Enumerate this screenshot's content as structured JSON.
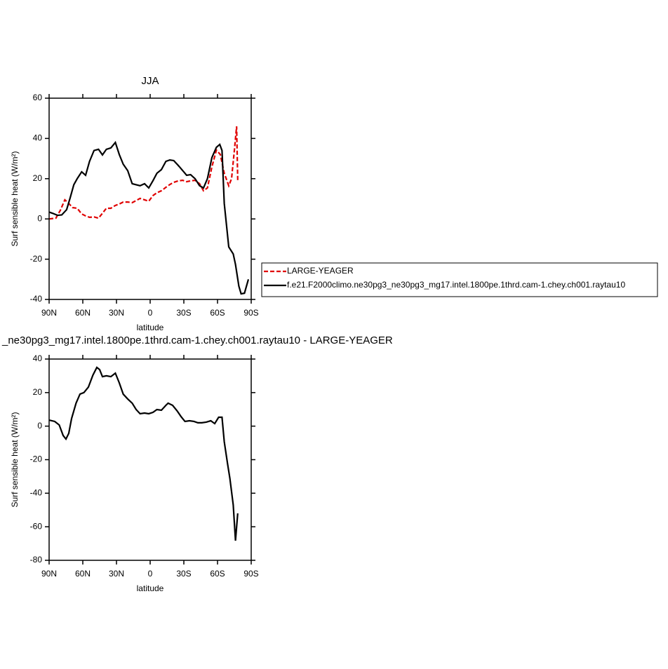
{
  "chart_data": [
    {
      "type": "line",
      "title": "JJA",
      "xlabel": "latitude",
      "ylabel": "Surf sensible heat (W/m²)",
      "xlim": [
        90,
        -90
      ],
      "ylim": [
        -40,
        60
      ],
      "xticks": [
        {
          "value": 90,
          "label": "90N"
        },
        {
          "value": 60,
          "label": "60N"
        },
        {
          "value": 30,
          "label": "30N"
        },
        0,
        {
          "value": -30,
          "label": "30S"
        },
        {
          "value": -60,
          "label": "60S"
        },
        {
          "value": -90,
          "label": "90S"
        }
      ],
      "yticks": [
        -40,
        -20,
        0,
        20,
        40,
        60
      ],
      "legend": "right",
      "series": [
        {
          "name": "LARGE-YEAGER",
          "color": "#e00000",
          "style": "dashed",
          "x": [
            90,
            84,
            80,
            76,
            72.5,
            69,
            65,
            61,
            57.5,
            54,
            50,
            46,
            42.5,
            39,
            35,
            31,
            27.5,
            24,
            20,
            16,
            12.5,
            9,
            5,
            1.25,
            -2.5,
            -6,
            -10,
            -14,
            -17.5,
            -21,
            -25,
            -29,
            -32.5,
            -36,
            -40,
            -44,
            -47.5,
            -51,
            -55,
            -59,
            -62.5,
            -66,
            -70,
            -72.5,
            -75,
            -77,
            -78
          ],
          "values": [
            0,
            0.4,
            4.3,
            9.5,
            7.7,
            5.6,
            5.3,
            2.5,
            1.5,
            0.8,
            1,
            0.4,
            2.8,
            5.3,
            5.3,
            6.7,
            7.4,
            8.4,
            8.4,
            8.1,
            9.1,
            10.2,
            9.5,
            8.8,
            11.6,
            13,
            14,
            15.7,
            17.1,
            18.2,
            18.9,
            19.2,
            18.5,
            18.9,
            19.2,
            17.5,
            14,
            15.4,
            25.9,
            34.2,
            32,
            22.7,
            16.5,
            20,
            34,
            46,
            19.2
          ]
        },
        {
          "name": "f.e21.F2000climo.ne30pg3_ne30pg3_mg17.intel.1800pe.1thrd.cam-1.chey.ch001.raytau10",
          "color": "#000000",
          "style": "solid",
          "x": [
            90,
            86.9,
            82.5,
            78.75,
            74.4,
            71.25,
            68,
            65,
            61,
            57.5,
            54,
            50,
            46,
            42.5,
            39,
            35,
            31,
            27.5,
            24,
            20,
            16,
            12.5,
            9,
            5,
            1.25,
            -2.5,
            -6,
            -10,
            -14,
            -17.5,
            -21,
            -25,
            -29,
            -32.5,
            -36,
            -40,
            -44,
            -47.5,
            -51,
            -55,
            -59,
            -62,
            -64,
            -66,
            -70,
            -74,
            -76,
            -79,
            -81,
            -84,
            -87.5
          ],
          "values": [
            3.4,
            2.8,
            1.8,
            2,
            4.6,
            10.5,
            17,
            20,
            23.4,
            21.7,
            28.6,
            34,
            34.6,
            31.8,
            34.6,
            35.3,
            38,
            32,
            27.2,
            24,
            17.5,
            17,
            16.5,
            17.5,
            15.4,
            19,
            22.7,
            24.5,
            28.6,
            29.3,
            29,
            26.6,
            24,
            21.7,
            22,
            20,
            16.5,
            15.4,
            20,
            30.5,
            35.6,
            37,
            34,
            7.7,
            -13.9,
            -17.4,
            -22.6,
            -33.4,
            -37.2,
            -36.9,
            -30
          ]
        }
      ]
    },
    {
      "type": "line",
      "title": "_ne30pg3_mg17.intel.1800pe.1thrd.cam-1.chey.ch001.raytau10 - LARGE-YEAGER",
      "xlabel": "latitude",
      "ylabel": "Surf sensible heat (W/m²)",
      "xlim": [
        90,
        -90
      ],
      "ylim": [
        -80,
        40
      ],
      "xticks": [
        {
          "value": 90,
          "label": "90N"
        },
        {
          "value": 60,
          "label": "60N"
        },
        {
          "value": 30,
          "label": "30N"
        },
        0,
        {
          "value": -30,
          "label": "30S"
        },
        {
          "value": -60,
          "label": "60S"
        },
        {
          "value": -90,
          "label": "90S"
        }
      ],
      "yticks": [
        -80,
        -60,
        -40,
        -20,
        0,
        20,
        40
      ],
      "series": [
        {
          "color": "#000000",
          "style": "solid",
          "x": [
            90,
            85,
            81,
            77.5,
            75,
            72.5,
            70,
            66,
            62.5,
            59,
            55,
            51,
            47.5,
            45,
            42.5,
            39,
            35,
            31,
            27.5,
            24,
            20,
            16,
            12.5,
            9,
            5,
            1.25,
            -2.5,
            -6,
            -10,
            -14,
            -16,
            -20,
            -24,
            -27.5,
            -31,
            -35,
            -39,
            -42.5,
            -46,
            -50,
            -54,
            -57.5,
            -61,
            -64,
            -66,
            -69,
            -71,
            -74,
            -76,
            -78
          ],
          "values": [
            3.6,
            2.8,
            0.7,
            -5.6,
            -7.7,
            -4.3,
            4.5,
            13.7,
            19.1,
            20,
            23.3,
            30.4,
            35,
            33.7,
            29.5,
            30,
            29.5,
            31.6,
            25.8,
            19.1,
            16.2,
            13.7,
            9.9,
            7.4,
            7.8,
            7.4,
            8.2,
            9.9,
            9.5,
            12.4,
            13.7,
            12.4,
            9.1,
            5.7,
            2.8,
            3.2,
            2.8,
            2,
            2,
            2.4,
            3.2,
            1.5,
            5.3,
            5.3,
            -9.3,
            -22.7,
            -31.1,
            -47,
            -68.3,
            -52
          ]
        }
      ]
    }
  ]
}
